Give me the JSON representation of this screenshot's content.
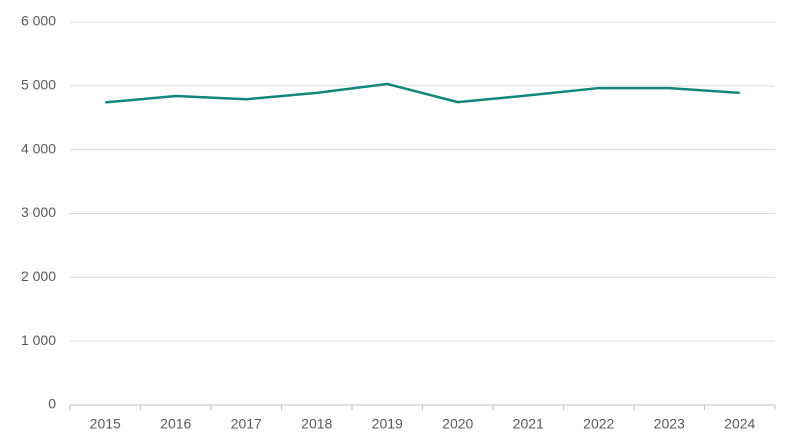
{
  "chart_data": {
    "type": "line",
    "categories": [
      "2015",
      "2016",
      "2017",
      "2018",
      "2019",
      "2020",
      "2021",
      "2022",
      "2023",
      "2024"
    ],
    "values": [
      4740,
      4840,
      4790,
      4890,
      5030,
      4745,
      4850,
      4965,
      4965,
      4890
    ],
    "color": "#11867a",
    "ylim": [
      0,
      6000
    ],
    "yticks": [
      0,
      {
        "value": 1000,
        "label": "1 000"
      },
      {
        "value": 2000,
        "label": "2 000"
      },
      {
        "value": 3000,
        "label": "3 000"
      },
      {
        "value": 4000,
        "label": "4 000"
      },
      {
        "value": 5000,
        "label": "5 000"
      },
      {
        "value": 6000,
        "label": "6 000"
      }
    ],
    "grid": true
  }
}
